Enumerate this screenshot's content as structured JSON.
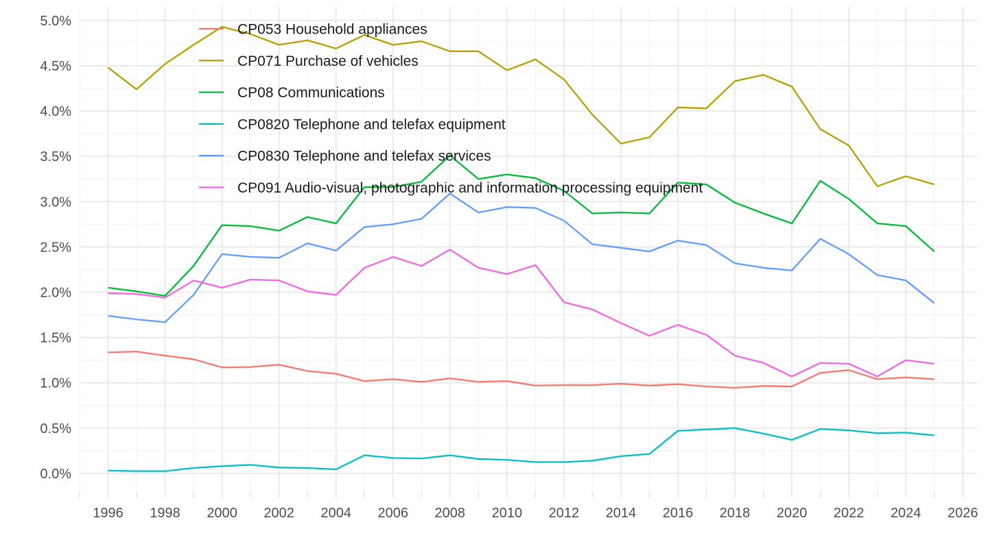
{
  "chart_data": {
    "type": "line",
    "title": "",
    "xlabel": "",
    "ylabel": "",
    "xlim": [
      1995,
      2026.5
    ],
    "ylim": [
      -0.0022,
      0.0515
    ],
    "y_ticks": [
      0.0,
      0.005,
      0.01,
      0.015,
      0.02,
      0.025,
      0.03,
      0.035,
      0.04,
      0.045,
      0.05
    ],
    "y_tick_labels": [
      "0.0%",
      "0.5%",
      "1.0%",
      "1.5%",
      "2.0%",
      "2.5%",
      "3.0%",
      "3.5%",
      "4.0%",
      "4.5%",
      "5.0%"
    ],
    "x_ticks": [
      1996,
      1998,
      2000,
      2002,
      2004,
      2006,
      2008,
      2010,
      2012,
      2014,
      2016,
      2018,
      2020,
      2022,
      2024,
      2026
    ],
    "x_tick_labels": [
      "1996",
      "1998",
      "2000",
      "2002",
      "2004",
      "2006",
      "2008",
      "2010",
      "2012",
      "2014",
      "2016",
      "2018",
      "2020",
      "2022",
      "2024",
      "2026"
    ],
    "grid": true,
    "legend_position": "top-left inside",
    "x": [
      1996,
      1997,
      1998,
      1999,
      2000,
      2001,
      2002,
      2003,
      2004,
      2005,
      2006,
      2007,
      2008,
      2009,
      2010,
      2011,
      2012,
      2013,
      2014,
      2015,
      2016,
      2017,
      2018,
      2019,
      2020,
      2021,
      2022,
      2023,
      2024,
      2025
    ],
    "series": [
      {
        "name": "CP053 Household appliances",
        "color": "#F8766D",
        "values": [
          0.01335,
          0.01345,
          0.013,
          0.0126,
          0.0117,
          0.01175,
          0.012,
          0.0113,
          0.011,
          0.0102,
          0.0104,
          0.0101,
          0.0105,
          0.0101,
          0.0102,
          0.0097,
          0.00975,
          0.00975,
          0.0099,
          0.0097,
          0.00985,
          0.0096,
          0.00945,
          0.00965,
          0.0096,
          0.0111,
          0.0114,
          0.0104,
          0.0106,
          0.0104
        ]
      },
      {
        "name": "CP071 Purchase of vehicles",
        "color": "#B79F00",
        "values": [
          0.0448,
          0.0424,
          0.0452,
          0.0473,
          0.0493,
          0.0485,
          0.0473,
          0.0478,
          0.0469,
          0.0484,
          0.0473,
          0.0477,
          0.0466,
          0.0466,
          0.0445,
          0.0457,
          0.0435,
          0.0396,
          0.0364,
          0.0371,
          0.0404,
          0.0403,
          0.0433,
          0.044,
          0.0427,
          0.038,
          0.0362,
          0.0317,
          0.0328,
          0.0319
        ]
      },
      {
        "name": "CP08 Communications",
        "color": "#00BA38",
        "values": [
          0.0205,
          0.0201,
          0.0196,
          0.0229,
          0.0274,
          0.0273,
          0.0268,
          0.0283,
          0.0276,
          0.0316,
          0.0316,
          0.0322,
          0.0351,
          0.0325,
          0.033,
          0.0326,
          0.0312,
          0.0287,
          0.0288,
          0.0287,
          0.0321,
          0.0319,
          0.0299,
          0.0287,
          0.0276,
          0.0323,
          0.0303,
          0.0276,
          0.0273,
          0.0245
        ]
      },
      {
        "name": "CP0820 Telephone and telefax equipment",
        "color": "#00BFC4",
        "values": [
          0.0003,
          0.00025,
          0.00025,
          0.0006,
          0.0008,
          0.00095,
          0.00065,
          0.0006,
          0.00045,
          0.002,
          0.0017,
          0.00165,
          0.002,
          0.0016,
          0.0015,
          0.00125,
          0.00125,
          0.0014,
          0.0019,
          0.00215,
          0.0047,
          0.00485,
          0.005,
          0.0044,
          0.0037,
          0.0049,
          0.00475,
          0.00445,
          0.0045,
          0.0042
        ]
      },
      {
        "name": "CP0830 Telephone and telefax services",
        "color": "#619CFF",
        "values": [
          0.0174,
          0.017,
          0.0167,
          0.0197,
          0.0242,
          0.0239,
          0.0238,
          0.0254,
          0.0246,
          0.0272,
          0.0275,
          0.0281,
          0.0309,
          0.0288,
          0.0294,
          0.0293,
          0.0279,
          0.0253,
          0.0249,
          0.0245,
          0.0257,
          0.0252,
          0.0232,
          0.0227,
          0.0224,
          0.0259,
          0.0242,
          0.0219,
          0.0213,
          0.0188
        ]
      },
      {
        "name": "CP091 Audio-visual, photographic and information processing equipment",
        "color": "#F564E3",
        "values": [
          0.0199,
          0.0198,
          0.0194,
          0.0213,
          0.0205,
          0.0214,
          0.0213,
          0.0201,
          0.0197,
          0.0227,
          0.0239,
          0.0229,
          0.0247,
          0.0227,
          0.022,
          0.023,
          0.0189,
          0.0181,
          0.0166,
          0.0152,
          0.0164,
          0.0153,
          0.013,
          0.0122,
          0.0107,
          0.0122,
          0.0121,
          0.0107,
          0.0125,
          0.0121
        ]
      }
    ]
  }
}
